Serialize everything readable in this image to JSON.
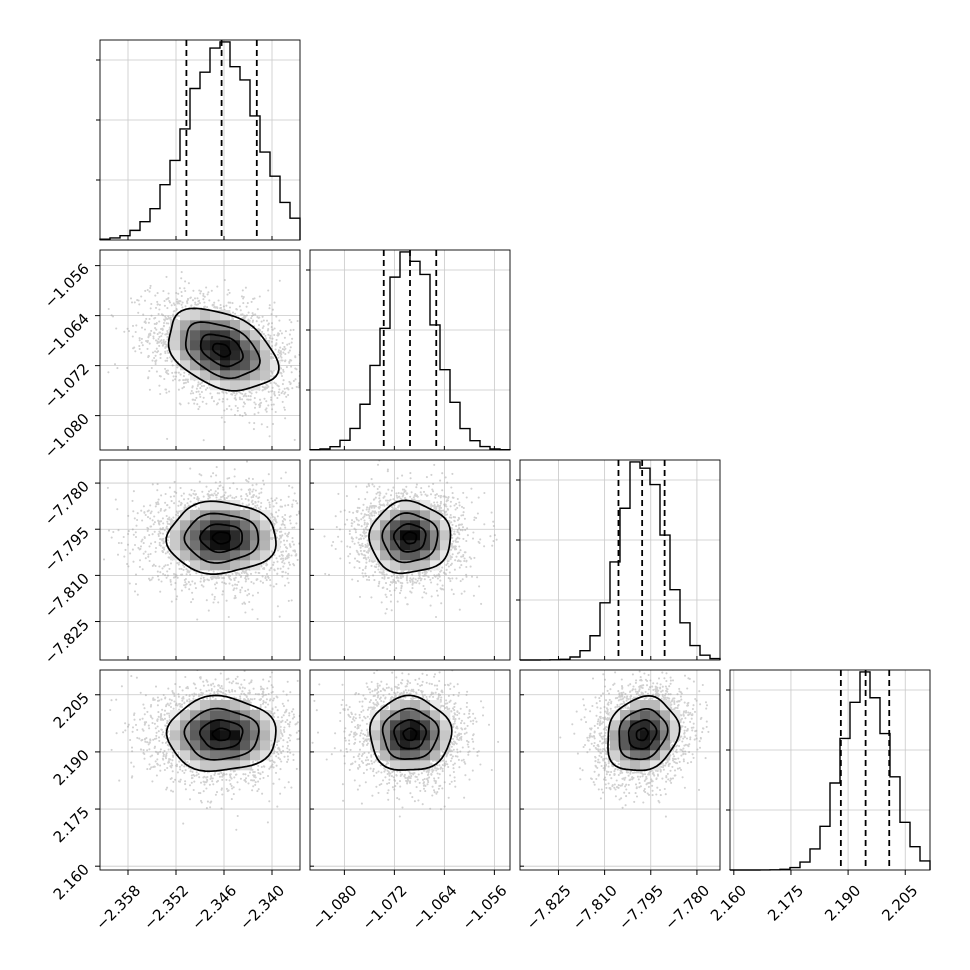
{
  "chart_data": {
    "type": "corner",
    "title": "",
    "parameters": [
      {
        "name": "",
        "range": [
          -2.3615,
          -2.3365
        ],
        "ticks": [
          -2.358,
          -2.352,
          -2.346,
          -2.34
        ],
        "tick_labels": [
          "−2.358",
          "−2.352",
          "−2.346",
          "−2.340"
        ],
        "median": -2.3463,
        "quantile_16": -2.3507,
        "quantile_84": -2.3419,
        "sigma": 0.0044
      },
      {
        "name": "",
        "range": [
          -1.0855,
          -1.0535
        ],
        "ticks": [
          -1.08,
          -1.072,
          -1.064,
          -1.056
        ],
        "tick_labels": [
          "−1.080",
          "−1.072",
          "−1.064",
          "−1.056"
        ],
        "median": -1.0695,
        "quantile_16": -1.0737,
        "quantile_84": -1.0653,
        "sigma": 0.0042
      },
      {
        "name": "",
        "range": [
          -7.8375,
          -7.7725
        ],
        "ticks": [
          -7.825,
          -7.81,
          -7.795,
          -7.78
        ],
        "tick_labels": [
          "−7.825",
          "−7.810",
          "−7.795",
          "−7.780"
        ],
        "median": -7.7978,
        "quantile_16": -7.8055,
        "quantile_84": -7.7905,
        "sigma": 0.0075
      },
      {
        "name": "",
        "range": [
          2.159,
          2.2115
        ],
        "ticks": [
          2.16,
          2.175,
          2.19,
          2.205
        ],
        "tick_labels": [
          "2.160",
          "2.175",
          "2.190",
          "2.205"
        ],
        "median": 2.1946,
        "quantile_16": 2.1881,
        "quantile_84": 2.2008,
        "sigma": 0.0063
      }
    ],
    "histogram_bins": 20,
    "contour_levels": 4,
    "correlations": [
      [
        1,
        -0.35,
        0.0,
        0.0
      ],
      [
        -0.35,
        1,
        0.0,
        0.0
      ],
      [
        0.0,
        0.0,
        1,
        0.15
      ],
      [
        0.0,
        0.0,
        0.15,
        1
      ]
    ],
    "grid": true
  }
}
